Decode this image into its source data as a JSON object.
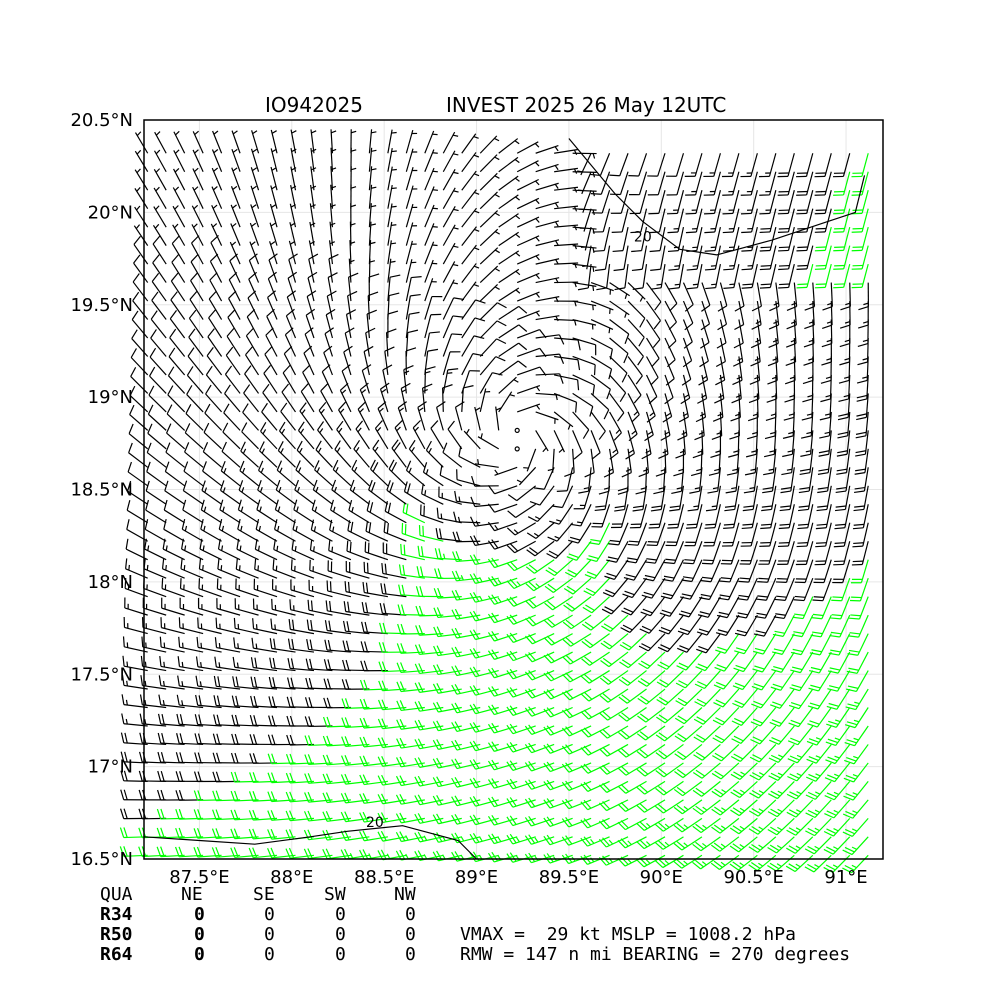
{
  "chart_data": {
    "type": "wind-barb-map",
    "title_left": "IO942025",
    "title_right": "INVEST 2025 26 May 12UTC",
    "xlim": [
      87.2,
      91.2
    ],
    "ylim": [
      16.5,
      20.4
    ],
    "x_ticks": [
      87.5,
      88.0,
      88.5,
      89.0,
      89.5,
      90.0,
      90.5,
      91.0
    ],
    "x_tick_labels": [
      "87.5°E",
      "88°E",
      "88.5°E",
      "89°E",
      "89.5°E",
      "90°E",
      "90.5°E",
      "91°E"
    ],
    "y_ticks": [
      16.5,
      17.0,
      17.5,
      18.0,
      18.5,
      19.0,
      19.5,
      20.0,
      20.5
    ],
    "y_tick_labels": [
      "16.5°N",
      "17°N",
      "17.5°N",
      "18°N",
      "18.5°N",
      "19°N",
      "19.5°N",
      "20°N",
      "20.5°N"
    ],
    "grid": true,
    "circulation_center": [
      89.2,
      18.6
    ],
    "barb_colors": {
      "default": "#000000",
      "ge_20kt": "#00ff00"
    },
    "contour_label": "20",
    "contour_level_kt": 20,
    "contour_north": [
      [
        89.5,
        20.4
      ],
      [
        89.75,
        20.1
      ],
      [
        89.9,
        19.95
      ],
      [
        90.1,
        19.8
      ],
      [
        90.3,
        19.77
      ],
      [
        90.6,
        19.85
      ],
      [
        90.9,
        19.95
      ],
      [
        91.05,
        20.0
      ],
      [
        91.1,
        20.2
      ]
    ],
    "contour_south": [
      [
        87.2,
        16.62
      ],
      [
        87.5,
        16.6
      ],
      [
        87.8,
        16.58
      ],
      [
        88.1,
        16.62
      ],
      [
        88.3,
        16.65
      ],
      [
        88.6,
        16.68
      ],
      [
        88.9,
        16.6
      ],
      [
        89.0,
        16.5
      ]
    ],
    "contour_label_positions": [
      [
        89.9,
        19.87
      ],
      [
        88.45,
        16.7
      ]
    ]
  },
  "table": {
    "header": [
      "QUA",
      "NE",
      "SE",
      "SW",
      "NW"
    ],
    "rows": [
      {
        "label": "R34",
        "values": [
          "0",
          "0",
          "0",
          "0"
        ]
      },
      {
        "label": "R50",
        "values": [
          "0",
          "0",
          "0",
          "0"
        ]
      },
      {
        "label": "R64",
        "values": [
          "0",
          "0",
          "0",
          "0"
        ]
      }
    ]
  },
  "stats": {
    "line1": "VMAX =  29 kt MSLP = 1008.2 hPa",
    "line2": "RMW = 147 n mi BEARING = 270 degrees"
  }
}
